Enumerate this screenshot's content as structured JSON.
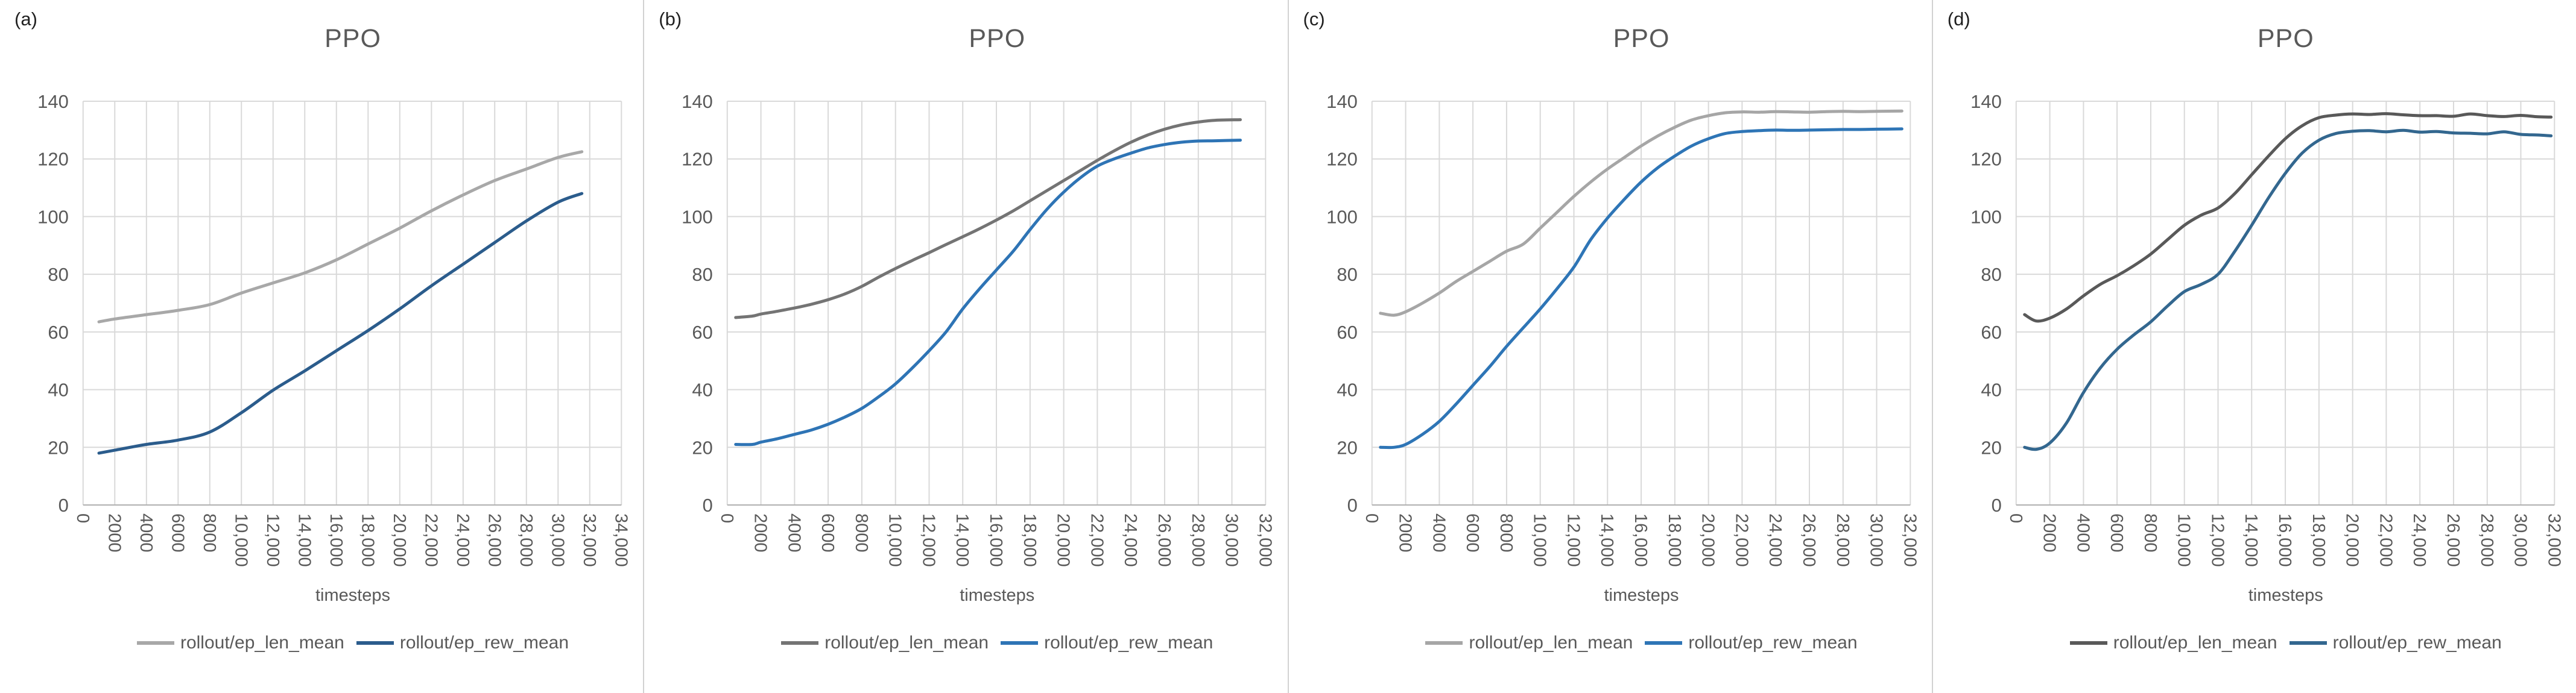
{
  "figure": {
    "background": "#ffffff",
    "grid_color": "#d9d9d9",
    "axis_color": "#b0b0b0",
    "text_color": "#595959"
  },
  "chart_data": [
    {
      "type": "line",
      "panel_label": "(a)",
      "title": "PPO",
      "xlabel": "timesteps",
      "ylim": [
        0,
        140
      ],
      "y_ticks": [
        0,
        20,
        40,
        60,
        80,
        100,
        120,
        140
      ],
      "x_ticks": [
        "0",
        "2000",
        "4000",
        "6000",
        "8000",
        "10,000",
        "12,000",
        "14,000",
        "16,000",
        "18,000",
        "20,000",
        "22,000",
        "24,000",
        "26,000",
        "28,000",
        "30,000",
        "32,000",
        "34,000"
      ],
      "x_max": 34000,
      "grid": true,
      "legend_position": "bottom",
      "series": [
        {
          "name": "rollout/ep_len_mean",
          "color": "#a8a8a8",
          "x": [
            1000,
            2000,
            4000,
            6000,
            8000,
            10000,
            12000,
            14000,
            16000,
            18000,
            20000,
            22000,
            24000,
            26000,
            28000,
            30000,
            31500
          ],
          "y": [
            63.5,
            64.5,
            66,
            67.5,
            69.5,
            73.5,
            77,
            80.5,
            85,
            90.5,
            96,
            102,
            107.5,
            112.5,
            116.5,
            120.5,
            122.5
          ]
        },
        {
          "name": "rollout/ep_rew_mean",
          "color": "#2b5c8c",
          "x": [
            1000,
            2000,
            4000,
            6000,
            8000,
            10000,
            12000,
            14000,
            16000,
            18000,
            20000,
            22000,
            24000,
            26000,
            28000,
            30000,
            31500
          ],
          "y": [
            18,
            19,
            21,
            22.5,
            25.3,
            32,
            39.8,
            46.5,
            53.5,
            60.5,
            68,
            76,
            83.5,
            91,
            98.5,
            105,
            108
          ]
        }
      ]
    },
    {
      "type": "line",
      "panel_label": "(b)",
      "title": "PPO",
      "xlabel": "timesteps",
      "ylim": [
        0,
        140
      ],
      "y_ticks": [
        0,
        20,
        40,
        60,
        80,
        100,
        120,
        140
      ],
      "x_ticks": [
        "0",
        "2000",
        "4000",
        "6000",
        "8000",
        "10,000",
        "12,000",
        "14,000",
        "16,000",
        "18,000",
        "20,000",
        "22,000",
        "24,000",
        "26,000",
        "28,000",
        "30,000",
        "32,000"
      ],
      "x_max": 32000,
      "grid": true,
      "legend_position": "bottom",
      "series": [
        {
          "name": "rollout/ep_len_mean",
          "color": "#747474",
          "x": [
            500,
            1500,
            2000,
            3000,
            4000,
            5000,
            6000,
            7000,
            8000,
            9000,
            10000,
            11000,
            12000,
            13000,
            14000,
            15000,
            16000,
            17000,
            18000,
            19000,
            20000,
            21000,
            22000,
            23000,
            24000,
            25000,
            26000,
            27000,
            28000,
            29000,
            30500
          ],
          "y": [
            65,
            65.5,
            66.2,
            67.2,
            68.3,
            69.6,
            71.2,
            73.2,
            75.8,
            79,
            82,
            84.8,
            87.5,
            90.3,
            93,
            95.8,
            98.8,
            102,
            105.5,
            109,
            112.5,
            116,
            119.5,
            122.8,
            125.8,
            128.3,
            130.3,
            131.8,
            132.8,
            133.4,
            133.6
          ]
        },
        {
          "name": "rollout/ep_rew_mean",
          "color": "#2e74b5",
          "x": [
            500,
            1500,
            2000,
            3000,
            4000,
            5000,
            6000,
            7000,
            8000,
            9000,
            10000,
            11000,
            12000,
            13000,
            14000,
            15000,
            16000,
            17000,
            18000,
            19000,
            20000,
            21000,
            22000,
            23000,
            24000,
            25000,
            26000,
            27000,
            28000,
            29000,
            30500
          ],
          "y": [
            21,
            21,
            21.8,
            23,
            24.5,
            26,
            28,
            30.5,
            33.5,
            37.5,
            42,
            47.5,
            53.5,
            60,
            68,
            75,
            81.5,
            88,
            95.5,
            102.5,
            108.5,
            113.5,
            117.5,
            120,
            122,
            123.8,
            125,
            125.8,
            126.2,
            126.3,
            126.5
          ]
        }
      ]
    },
    {
      "type": "line",
      "panel_label": "(c)",
      "title": "PPO",
      "xlabel": "timesteps",
      "ylim": [
        0,
        140
      ],
      "y_ticks": [
        0,
        20,
        40,
        60,
        80,
        100,
        120,
        140
      ],
      "x_ticks": [
        "0",
        "2000",
        "4000",
        "6000",
        "8000",
        "10,000",
        "12,000",
        "14,000",
        "16,000",
        "18,000",
        "20,000",
        "22,000",
        "24,000",
        "26,000",
        "28,000",
        "30,000",
        "32,000"
      ],
      "x_max": 32000,
      "grid": true,
      "legend_position": "bottom",
      "series": [
        {
          "name": "rollout/ep_len_mean",
          "color": "#a6a6a6",
          "x": [
            500,
            1300,
            2000,
            3000,
            4000,
            5000,
            6000,
            7000,
            8000,
            9000,
            10000,
            11000,
            12000,
            13000,
            14000,
            15000,
            16000,
            17000,
            18000,
            19000,
            20000,
            21000,
            22000,
            23000,
            24000,
            25000,
            26000,
            27000,
            28000,
            29000,
            30000,
            31500
          ],
          "y": [
            66.5,
            65.8,
            67,
            70,
            73.5,
            77.5,
            81,
            84.5,
            88,
            90.5,
            96,
            101.5,
            107,
            112,
            116.5,
            120.5,
            124.5,
            128,
            131,
            133.5,
            135,
            136,
            136.3,
            136.2,
            136.4,
            136.3,
            136.2,
            136.4,
            136.5,
            136.4,
            136.5,
            136.6
          ]
        },
        {
          "name": "rollout/ep_rew_mean",
          "color": "#2e75b6",
          "x": [
            500,
            1300,
            2000,
            3000,
            4000,
            5000,
            6000,
            7000,
            8000,
            9000,
            10000,
            11000,
            12000,
            13000,
            14000,
            15000,
            16000,
            17000,
            18000,
            19000,
            20000,
            21000,
            22000,
            23000,
            24000,
            25000,
            26000,
            27000,
            28000,
            29000,
            30000,
            31500
          ],
          "y": [
            20,
            20,
            21,
            24.5,
            29,
            35,
            41.5,
            48,
            55,
            61.5,
            68,
            75,
            82.5,
            92,
            99.5,
            106,
            112,
            117,
            121,
            124.5,
            127,
            128.8,
            129.5,
            129.8,
            130,
            129.9,
            130,
            130.1,
            130.2,
            130.2,
            130.3,
            130.4
          ]
        }
      ]
    },
    {
      "type": "line",
      "panel_label": "(d)",
      "title": "PPO",
      "xlabel": "timesteps",
      "ylim": [
        0,
        140
      ],
      "y_ticks": [
        0,
        20,
        40,
        60,
        80,
        100,
        120,
        140
      ],
      "x_ticks": [
        "0",
        "2000",
        "4000",
        "6000",
        "8000",
        "10,000",
        "12,000",
        "14,000",
        "16,000",
        "18,000",
        "20,000",
        "22,000",
        "24,000",
        "26,000",
        "28,000",
        "30,000",
        "32,000"
      ],
      "x_max": 32000,
      "grid": true,
      "legend_position": "bottom",
      "series": [
        {
          "name": "rollout/ep_len_mean",
          "color": "#595959",
          "x": [
            500,
            1200,
            2000,
            3000,
            4000,
            5000,
            6000,
            7000,
            8000,
            9000,
            10000,
            11000,
            12000,
            13000,
            14000,
            15000,
            16000,
            17000,
            18000,
            19000,
            20000,
            21000,
            22000,
            23000,
            24000,
            25000,
            26000,
            27000,
            28000,
            29000,
            30000,
            31000,
            31800
          ],
          "y": [
            66,
            63.8,
            64.8,
            68,
            72.5,
            76.5,
            79.5,
            83,
            87,
            92,
            97,
            100.5,
            103,
            108,
            114.5,
            121,
            127,
            131.5,
            134.3,
            135.2,
            135.6,
            135.4,
            135.7,
            135.3,
            135,
            135,
            134.8,
            135.6,
            135,
            134.7,
            135.1,
            134.6,
            134.5
          ]
        },
        {
          "name": "rollout/ep_rew_mean",
          "color": "#33678f",
          "x": [
            500,
            1200,
            2000,
            3000,
            4000,
            5000,
            6000,
            7000,
            8000,
            9000,
            10000,
            11000,
            12000,
            13000,
            14000,
            15000,
            16000,
            17000,
            18000,
            19000,
            20000,
            21000,
            22000,
            23000,
            24000,
            25000,
            26000,
            27000,
            28000,
            29000,
            30000,
            31000,
            31800
          ],
          "y": [
            20,
            19.3,
            21.5,
            28.5,
            39,
            47.5,
            54,
            59,
            63.5,
            69,
            74,
            76.5,
            80,
            88,
            97,
            106.5,
            115,
            122,
            126.5,
            128.8,
            129.6,
            129.8,
            129.4,
            129.9,
            129.3,
            129.5,
            129,
            128.9,
            128.7,
            129.4,
            128.5,
            128.3,
            128
          ]
        }
      ]
    }
  ]
}
